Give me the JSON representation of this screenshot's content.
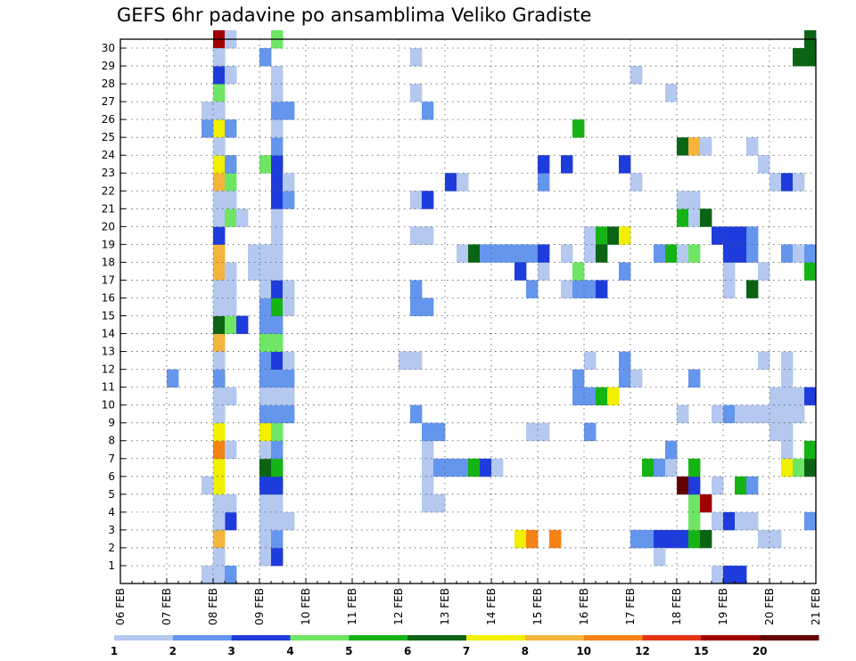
{
  "chart_data": {
    "type": "heatmap",
    "title": "GEFS 6hr padavine po ansamblima Veliko Gradiste",
    "xlabel": "",
    "ylabel": "",
    "x_tick_labels": [
      "06 FEB",
      "07 FEB",
      "08 FEB",
      "09 FEB",
      "10 FEB",
      "11 FEB",
      "12 FEB",
      "13 FEB",
      "14 FEB",
      "15 FEB",
      "16 FEB",
      "17 FEB",
      "18 FEB",
      "19 FEB",
      "20 FEB",
      "21 FEB"
    ],
    "y_tick_labels": [
      "1",
      "2",
      "3",
      "4",
      "5",
      "6",
      "7",
      "8",
      "9",
      "10",
      "11",
      "12",
      "13",
      "14",
      "15",
      "16",
      "17",
      "18",
      "19",
      "20",
      "21",
      "22",
      "23",
      "24",
      "25",
      "26",
      "27",
      "28",
      "29",
      "30"
    ],
    "ylim": [
      0,
      30
    ],
    "time_steps_per_day": 4,
    "grid": true,
    "legend_levels": [
      "1",
      "2",
      "3",
      "4",
      "5",
      "6",
      "7",
      "8",
      "10",
      "12",
      "15",
      "20"
    ],
    "legend_colors": [
      "#b4c8f0",
      "#6496ee",
      "#1e3cdc",
      "#6ee664",
      "#14b414",
      "#0a6414",
      "#f0f000",
      "#f5b43c",
      "#f58214",
      "#e63214",
      "#a00000",
      "#640000"
    ],
    "cells": [
      [
        0,
        4,
        11,
        2
      ],
      [
        1,
        4,
        1,
        4
      ],
      [
        1,
        4,
        2,
        8
      ],
      [
        1,
        4,
        3,
        6
      ],
      [
        1,
        4,
        4,
        1
      ],
      [
        1,
        4,
        5,
        7
      ],
      [
        1,
        4,
        6,
        7
      ],
      [
        1,
        4,
        7,
        9
      ],
      [
        1,
        4,
        8,
        7
      ],
      [
        1,
        4,
        9,
        5
      ],
      [
        1,
        4,
        10,
        5
      ],
      [
        1,
        4,
        11,
        6
      ],
      [
        1,
        4,
        12,
        8
      ],
      [
        1,
        4,
        13,
        8
      ],
      [
        1,
        4,
        14,
        6
      ],
      [
        1,
        4,
        15,
        9
      ],
      [
        1,
        4,
        16,
        10
      ],
      [
        1,
        4,
        17,
        8
      ],
      [
        1,
        4,
        18,
        8
      ],
      [
        1,
        4,
        19,
        3
      ],
      [
        1,
        4,
        20,
        6
      ],
      [
        1,
        4,
        21,
        5
      ],
      [
        1,
        4,
        22,
        8
      ],
      [
        1,
        4,
        23,
        7
      ],
      [
        1,
        4,
        24,
        5
      ],
      [
        1,
        4,
        25,
        7
      ],
      [
        1,
        4,
        26,
        11
      ],
      [
        1,
        4,
        27,
        4
      ],
      [
        1,
        4,
        28,
        6
      ],
      [
        1,
        4,
        29,
        5
      ],
      [
        1,
        4,
        30,
        11
      ],
      [
        1,
        3,
        5,
        1
      ],
      [
        1,
        3,
        25,
        2
      ],
      [
        1,
        3,
        26,
        1
      ],
      [
        1,
        3,
        0,
        1
      ],
      [
        1,
        5,
        3,
        3
      ],
      [
        1,
        5,
        4,
        1
      ],
      [
        1,
        5,
        7,
        1
      ],
      [
        1,
        5,
        10,
        1
      ],
      [
        1,
        5,
        17,
        1
      ],
      [
        1,
        5,
        20,
        1
      ],
      [
        1,
        5,
        22,
        4
      ],
      [
        1,
        5,
        25,
        2
      ],
      [
        1,
        5,
        28,
        2
      ],
      [
        1,
        5,
        30,
        1
      ],
      [
        2,
        0,
        1,
        1
      ],
      [
        2,
        0,
        3,
        1
      ],
      [
        2,
        0,
        9,
        1
      ],
      [
        2,
        0,
        10,
        1
      ],
      [
        2,
        0,
        11,
        2
      ],
      [
        2,
        0,
        12,
        1
      ],
      [
        2,
        0,
        15,
        1
      ],
      [
        2,
        0,
        16,
        1
      ],
      [
        2,
        0,
        20,
        1
      ],
      [
        2,
        0,
        21,
        1
      ],
      [
        2,
        0,
        24,
        1
      ],
      [
        2,
        0,
        26,
        1
      ],
      [
        2,
        0,
        28,
        3
      ],
      [
        2,
        0,
        29,
        1
      ],
      [
        2,
        0,
        0,
        1
      ],
      [
        2,
        1,
        14,
        4
      ],
      [
        2,
        1,
        15,
        1
      ],
      [
        2,
        1,
        16,
        1
      ],
      [
        2,
        1,
        20,
        4
      ],
      [
        2,
        1,
        21,
        1
      ],
      [
        2,
        1,
        23,
        2
      ],
      [
        2,
        1,
        28,
        1
      ],
      [
        2,
        1,
        0,
        2
      ],
      [
        2,
        2,
        14,
        3
      ],
      [
        2,
        2,
        20,
        1
      ],
      [
        2,
        3,
        18,
        1
      ],
      [
        2,
        3,
        17,
        1
      ],
      [
        3,
        0,
        1,
        1
      ],
      [
        3,
        0,
        2,
        1
      ],
      [
        3,
        0,
        3,
        1
      ],
      [
        3,
        0,
        4,
        1
      ],
      [
        3,
        0,
        5,
        3
      ],
      [
        3,
        0,
        6,
        6
      ],
      [
        3,
        0,
        7,
        1
      ],
      [
        3,
        0,
        8,
        7
      ],
      [
        3,
        0,
        9,
        2
      ],
      [
        3,
        0,
        10,
        1
      ],
      [
        3,
        0,
        11,
        2
      ],
      [
        3,
        0,
        12,
        2
      ],
      [
        3,
        0,
        13,
        4
      ],
      [
        3,
        0,
        14,
        2
      ],
      [
        3,
        0,
        15,
        2
      ],
      [
        3,
        0,
        16,
        1
      ],
      [
        3,
        0,
        17,
        1
      ],
      [
        3,
        0,
        18,
        1
      ],
      [
        3,
        0,
        23,
        4
      ],
      [
        3,
        0,
        29,
        2
      ],
      [
        3,
        1,
        1,
        3
      ],
      [
        3,
        1,
        2,
        2
      ],
      [
        3,
        1,
        3,
        1
      ],
      [
        3,
        1,
        4,
        1
      ],
      [
        3,
        1,
        5,
        3
      ],
      [
        3,
        1,
        6,
        5
      ],
      [
        3,
        1,
        7,
        2
      ],
      [
        3,
        1,
        8,
        4
      ],
      [
        3,
        1,
        9,
        2
      ],
      [
        3,
        1,
        10,
        1
      ],
      [
        3,
        1,
        11,
        2
      ],
      [
        3,
        1,
        12,
        3
      ],
      [
        3,
        1,
        13,
        4
      ],
      [
        3,
        1,
        14,
        2
      ],
      [
        3,
        1,
        15,
        5
      ],
      [
        3,
        1,
        16,
        3
      ],
      [
        3,
        1,
        17,
        1
      ],
      [
        3,
        1,
        18,
        1
      ],
      [
        3,
        1,
        19,
        1
      ],
      [
        3,
        1,
        20,
        1
      ],
      [
        3,
        1,
        21,
        3
      ],
      [
        3,
        1,
        22,
        3
      ],
      [
        3,
        1,
        23,
        3
      ],
      [
        3,
        1,
        24,
        2
      ],
      [
        3,
        1,
        25,
        1
      ],
      [
        3,
        1,
        26,
        2
      ],
      [
        3,
        1,
        27,
        1
      ],
      [
        3,
        1,
        28,
        1
      ],
      [
        3,
        1,
        30,
        4
      ],
      [
        3,
        2,
        3,
        1
      ],
      [
        3,
        2,
        9,
        2
      ],
      [
        3,
        2,
        10,
        1
      ],
      [
        3,
        2,
        11,
        2
      ],
      [
        3,
        2,
        12,
        1
      ],
      [
        3,
        2,
        15,
        1
      ],
      [
        3,
        2,
        16,
        1
      ],
      [
        3,
        2,
        21,
        2
      ],
      [
        3,
        2,
        22,
        1
      ],
      [
        3,
        2,
        26,
        2
      ],
      [
        6,
        0,
        12,
        1
      ],
      [
        6,
        1,
        9,
        2
      ],
      [
        6,
        1,
        12,
        1
      ],
      [
        6,
        1,
        15,
        2
      ],
      [
        6,
        1,
        16,
        2
      ],
      [
        6,
        1,
        19,
        1
      ],
      [
        6,
        1,
        21,
        1
      ],
      [
        6,
        1,
        27,
        1
      ],
      [
        6,
        1,
        29,
        1
      ],
      [
        6,
        2,
        4,
        1
      ],
      [
        6,
        2,
        5,
        1
      ],
      [
        6,
        2,
        6,
        1
      ],
      [
        6,
        2,
        7,
        1
      ],
      [
        6,
        2,
        8,
        2
      ],
      [
        6,
        2,
        15,
        2
      ],
      [
        6,
        2,
        19,
        1
      ],
      [
        6,
        2,
        21,
        3
      ],
      [
        6,
        2,
        26,
        2
      ],
      [
        6,
        3,
        4,
        1
      ],
      [
        6,
        3,
        6,
        2
      ],
      [
        6,
        3,
        8,
        2
      ],
      [
        7,
        0,
        6,
        2
      ],
      [
        7,
        0,
        22,
        3
      ],
      [
        7,
        1,
        6,
        2
      ],
      [
        7,
        1,
        18,
        1
      ],
      [
        7,
        1,
        22,
        1
      ],
      [
        7,
        2,
        6,
        5
      ],
      [
        7,
        2,
        18,
        6
      ],
      [
        7,
        3,
        6,
        3
      ],
      [
        7,
        3,
        18,
        2
      ],
      [
        8,
        0,
        6,
        1
      ],
      [
        8,
        0,
        18,
        2
      ],
      [
        8,
        1,
        18,
        2
      ],
      [
        8,
        2,
        2,
        7
      ],
      [
        8,
        2,
        18,
        2
      ],
      [
        8,
        2,
        17,
        3
      ],
      [
        8,
        3,
        8,
        1
      ],
      [
        8,
        3,
        18,
        2
      ],
      [
        8,
        3,
        16,
        2
      ],
      [
        8,
        3,
        2,
        9
      ],
      [
        9,
        0,
        8,
        1
      ],
      [
        9,
        0,
        17,
        1
      ],
      [
        9,
        0,
        18,
        3
      ],
      [
        9,
        0,
        22,
        2
      ],
      [
        9,
        0,
        23,
        3
      ],
      [
        9,
        1,
        2,
        9
      ],
      [
        9,
        2,
        16,
        1
      ],
      [
        9,
        2,
        18,
        1
      ],
      [
        9,
        2,
        23,
        3
      ],
      [
        9,
        3,
        10,
        2
      ],
      [
        9,
        3,
        11,
        2
      ],
      [
        9,
        3,
        16,
        2
      ],
      [
        9,
        3,
        25,
        5
      ],
      [
        9,
        3,
        17,
        4
      ],
      [
        10,
        0,
        8,
        2
      ],
      [
        10,
        0,
        10,
        2
      ],
      [
        10,
        0,
        12,
        1
      ],
      [
        10,
        0,
        16,
        2
      ],
      [
        10,
        0,
        18,
        1
      ],
      [
        10,
        0,
        19,
        1
      ],
      [
        10,
        1,
        10,
        5
      ],
      [
        10,
        1,
        16,
        3
      ],
      [
        10,
        1,
        19,
        5
      ],
      [
        10,
        1,
        18,
        6
      ],
      [
        10,
        2,
        10,
        7
      ],
      [
        10,
        2,
        19,
        6
      ],
      [
        10,
        3,
        11,
        2
      ],
      [
        10,
        3,
        12,
        2
      ],
      [
        10,
        3,
        17,
        2
      ],
      [
        10,
        3,
        19,
        7
      ],
      [
        10,
        3,
        23,
        3
      ],
      [
        11,
        0,
        11,
        1
      ],
      [
        11,
        0,
        22,
        1
      ],
      [
        11,
        0,
        2,
        1
      ],
      [
        11,
        0,
        28,
        1
      ],
      [
        11,
        0,
        2,
        2
      ],
      [
        11,
        1,
        2,
        2
      ],
      [
        11,
        1,
        6,
        5
      ],
      [
        11,
        2,
        2,
        3
      ],
      [
        11,
        2,
        18,
        2
      ],
      [
        11,
        2,
        6,
        2
      ],
      [
        11,
        2,
        1,
        1
      ],
      [
        11,
        3,
        2,
        3
      ],
      [
        11,
        3,
        6,
        1
      ],
      [
        11,
        3,
        7,
        2
      ],
      [
        11,
        3,
        18,
        5
      ],
      [
        11,
        3,
        27,
        1
      ],
      [
        12,
        0,
        2,
        3
      ],
      [
        12,
        0,
        5,
        12
      ],
      [
        12,
        0,
        9,
        1
      ],
      [
        12,
        0,
        20,
        5
      ],
      [
        12,
        0,
        21,
        1
      ],
      [
        12,
        0,
        24,
        6
      ],
      [
        12,
        0,
        18,
        1
      ],
      [
        12,
        1,
        2,
        5
      ],
      [
        12,
        1,
        3,
        4
      ],
      [
        12,
        1,
        4,
        4
      ],
      [
        12,
        1,
        5,
        3
      ],
      [
        12,
        1,
        11,
        2
      ],
      [
        12,
        1,
        18,
        4
      ],
      [
        12,
        1,
        24,
        8
      ],
      [
        12,
        1,
        20,
        1
      ],
      [
        12,
        1,
        21,
        1
      ],
      [
        12,
        1,
        6,
        5
      ],
      [
        12,
        2,
        2,
        6
      ],
      [
        12,
        2,
        4,
        11
      ],
      [
        12,
        2,
        20,
        6
      ],
      [
        12,
        2,
        24,
        1
      ],
      [
        12,
        3,
        3,
        1
      ],
      [
        12,
        3,
        5,
        1
      ],
      [
        12,
        3,
        9,
        1
      ],
      [
        12,
        3,
        19,
        3
      ],
      [
        12,
        3,
        0,
        1
      ],
      [
        13,
        0,
        3,
        3
      ],
      [
        13,
        0,
        9,
        2
      ],
      [
        13,
        0,
        16,
        1
      ],
      [
        13,
        0,
        17,
        1
      ],
      [
        13,
        0,
        18,
        3
      ],
      [
        13,
        0,
        19,
        3
      ],
      [
        13,
        0,
        0,
        3
      ],
      [
        13,
        1,
        3,
        1
      ],
      [
        13,
        1,
        9,
        1
      ],
      [
        13,
        1,
        18,
        3
      ],
      [
        13,
        1,
        19,
        3
      ],
      [
        13,
        1,
        5,
        5
      ],
      [
        13,
        1,
        0,
        3
      ],
      [
        13,
        2,
        3,
        1
      ],
      [
        13,
        2,
        9,
        1
      ],
      [
        13,
        2,
        16,
        6
      ],
      [
        13,
        2,
        18,
        2
      ],
      [
        13,
        2,
        19,
        2
      ],
      [
        13,
        2,
        5,
        2
      ],
      [
        13,
        2,
        24,
        1
      ],
      [
        13,
        3,
        2,
        1
      ],
      [
        13,
        3,
        12,
        1
      ],
      [
        13,
        3,
        9,
        1
      ],
      [
        13,
        3,
        17,
        1
      ],
      [
        13,
        3,
        23,
        1
      ],
      [
        14,
        0,
        2,
        1
      ],
      [
        14,
        0,
        8,
        1
      ],
      [
        14,
        0,
        9,
        1
      ],
      [
        14,
        0,
        10,
        1
      ],
      [
        14,
        0,
        22,
        1
      ],
      [
        14,
        1,
        6,
        7
      ],
      [
        14,
        1,
        10,
        1
      ],
      [
        14,
        1,
        11,
        1
      ],
      [
        14,
        1,
        12,
        1
      ],
      [
        14,
        1,
        18,
        2
      ],
      [
        14,
        1,
        22,
        3
      ],
      [
        14,
        1,
        9,
        1
      ],
      [
        14,
        1,
        7,
        1
      ],
      [
        14,
        1,
        8,
        1
      ],
      [
        14,
        2,
        6,
        4
      ],
      [
        14,
        2,
        10,
        1
      ],
      [
        14,
        2,
        18,
        1
      ],
      [
        14,
        2,
        22,
        1
      ],
      [
        14,
        2,
        9,
        1
      ],
      [
        14,
        2,
        29,
        6
      ],
      [
        14,
        2,
        6,
        4
      ],
      [
        14,
        3,
        6,
        6
      ],
      [
        14,
        3,
        7,
        5
      ],
      [
        14,
        3,
        10,
        3
      ],
      [
        14,
        3,
        29,
        6
      ],
      [
        14,
        3,
        30,
        6
      ],
      [
        14,
        3,
        17,
        5
      ],
      [
        14,
        3,
        18,
        2
      ],
      [
        14,
        3,
        3,
        2
      ]
    ]
  }
}
